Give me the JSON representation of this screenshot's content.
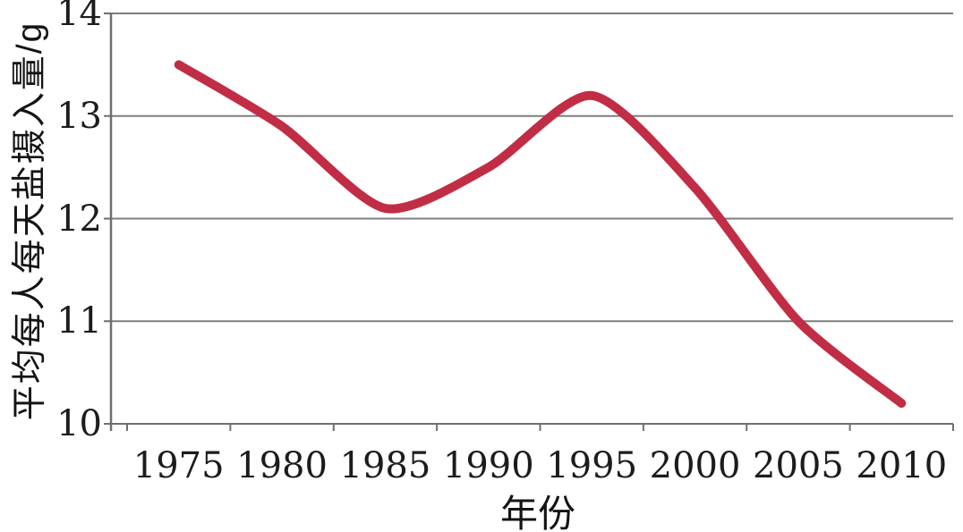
{
  "chart_data": {
    "type": "line",
    "title": "",
    "xlabel": "年份",
    "ylabel": "平均每人每天盐摄入量/g",
    "categories": [
      "1975",
      "1980",
      "1985",
      "1990",
      "1995",
      "2000",
      "2005",
      "2010"
    ],
    "series": [
      {
        "name": "平均每人每天盐摄入量",
        "values": [
          13.5,
          12.9,
          12.1,
          12.5,
          13.2,
          12.3,
          11.0,
          10.2
        ]
      }
    ],
    "ylim": [
      10,
      14
    ],
    "yticks": [
      "14",
      "13",
      "12",
      "11",
      "10"
    ],
    "ytick_values": [
      14,
      13,
      12,
      11,
      10
    ],
    "grid": true,
    "legend": false,
    "line_color": "#c12d45",
    "grid_color": "#7d7d7d",
    "axis_color": "#6f6f6f",
    "text_color": "#1c1c1c"
  }
}
